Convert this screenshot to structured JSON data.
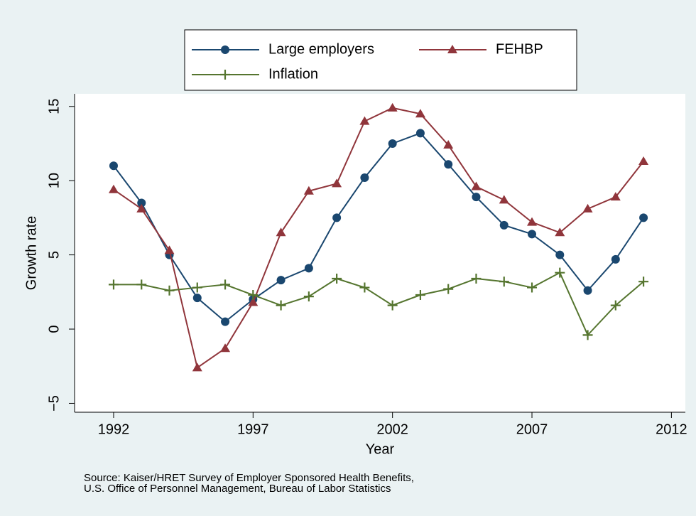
{
  "chart_data": {
    "type": "line",
    "x_label": "Year",
    "y_label": "Growth rate",
    "note": [
      "Source: Kaiser/HRET Survey of Employer Sponsored Health Benefits,",
      "U.S. Office of Personnel Management, Bureau of Labor Statistics"
    ],
    "x": [
      1992,
      1993,
      1994,
      1995,
      1996,
      1997,
      1998,
      1999,
      2000,
      2001,
      2002,
      2003,
      2004,
      2005,
      2006,
      2007,
      2008,
      2009,
      2010,
      2011
    ],
    "series": [
      {
        "name": "Large employers",
        "color": "#1a476f",
        "marker": "circle",
        "values": [
          11,
          8.5,
          5,
          2.1,
          0.5,
          2,
          3.3,
          4.1,
          7.5,
          10.2,
          12.5,
          13.2,
          11.1,
          8.9,
          7.0,
          6.4,
          5.0,
          2.6,
          4.7,
          7.5
        ]
      },
      {
        "name": "FEHBP",
        "color": "#90353b",
        "marker": "triangle",
        "values": [
          9.4,
          8.1,
          5.3,
          -2.6,
          -1.3,
          1.8,
          6.5,
          9.3,
          9.8,
          14.0,
          14.9,
          14.5,
          12.4,
          9.6,
          8.7,
          7.2,
          6.5,
          8.1,
          8.9,
          11.3
        ]
      },
      {
        "name": "Inflation",
        "color": "#55752f",
        "marker": "plus",
        "values": [
          3.0,
          3.0,
          2.6,
          2.8,
          3.0,
          2.3,
          1.6,
          2.2,
          3.4,
          2.8,
          1.6,
          2.3,
          2.7,
          3.4,
          3.2,
          2.8,
          3.8,
          -0.4,
          1.6,
          3.2
        ]
      }
    ],
    "xlim": [
      1990.6,
      2012.5
    ],
    "xticks": [
      1992,
      1997,
      2002,
      2007,
      2012
    ],
    "ylim": [
      -5.6,
      15.85
    ],
    "yticks": [
      {
        "value": -5,
        "label": "−5"
      },
      0,
      5,
      10,
      15
    ],
    "grid": false
  }
}
